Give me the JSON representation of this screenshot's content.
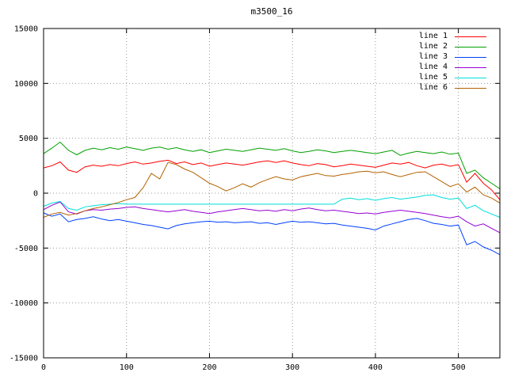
{
  "title": "m3500_16",
  "background": "#ffffff",
  "axis": {
    "border_color": "#000000",
    "grid_color": "#9b9b9b",
    "tick_color": "#000000",
    "grid_on": true
  },
  "chart_data": {
    "type": "line",
    "title": "m3500_16",
    "xlabel": "",
    "ylabel": "",
    "xlim": [
      0,
      550
    ],
    "ylim": [
      -15000,
      15000
    ],
    "xticks": [
      0,
      100,
      200,
      300,
      400,
      500
    ],
    "yticks": [
      -15000,
      -10000,
      -5000,
      0,
      5000,
      10000,
      15000
    ],
    "grid": true,
    "legend_position": "top-right-inside",
    "x_start": 0,
    "x_step": 10,
    "series": [
      {
        "name": "line 1",
        "color": "#ff0000",
        "values": [
          2300,
          2500,
          2850,
          2100,
          1900,
          2400,
          2550,
          2450,
          2600,
          2500,
          2700,
          2850,
          2650,
          2750,
          2900,
          3000,
          2700,
          2850,
          2600,
          2750,
          2450,
          2600,
          2750,
          2650,
          2550,
          2700,
          2850,
          2950,
          2800,
          2950,
          2750,
          2600,
          2500,
          2700,
          2600,
          2400,
          2500,
          2650,
          2550,
          2450,
          2350,
          2550,
          2750,
          2650,
          2800,
          2500,
          2300,
          2550,
          2650,
          2450,
          2600,
          1000,
          1800,
          900,
          300,
          -600
        ]
      },
      {
        "name": "line 2",
        "color": "#00a000",
        "values": [
          3600,
          4100,
          4650,
          3900,
          3500,
          3900,
          4100,
          3950,
          4150,
          4000,
          4200,
          4050,
          3900,
          4100,
          4200,
          4000,
          4150,
          3950,
          3800,
          3950,
          3700,
          3850,
          4000,
          3900,
          3800,
          3950,
          4100,
          4000,
          3900,
          4050,
          3850,
          3700,
          3800,
          3950,
          3850,
          3700,
          3800,
          3900,
          3800,
          3700,
          3600,
          3750,
          3900,
          3450,
          3650,
          3800,
          3700,
          3600,
          3750,
          3550,
          3650,
          1800,
          2100,
          1400,
          900,
          400
        ]
      },
      {
        "name": "line 3",
        "color": "#0040ff",
        "values": [
          -1800,
          -2100,
          -1900,
          -2600,
          -2400,
          -2300,
          -2150,
          -2350,
          -2500,
          -2400,
          -2550,
          -2700,
          -2850,
          -2950,
          -3100,
          -3250,
          -2950,
          -2800,
          -2700,
          -2600,
          -2550,
          -2650,
          -2600,
          -2700,
          -2650,
          -2600,
          -2750,
          -2700,
          -2850,
          -2700,
          -2550,
          -2650,
          -2600,
          -2700,
          -2800,
          -2750,
          -2900,
          -3000,
          -3100,
          -3200,
          -3350,
          -3000,
          -2800,
          -2600,
          -2400,
          -2300,
          -2500,
          -2750,
          -2850,
          -3000,
          -2900,
          -4700,
          -4400,
          -4900,
          -5200,
          -5600
        ]
      },
      {
        "name": "line 4",
        "color": "#9400d3",
        "values": [
          -1500,
          -1100,
          -800,
          -1700,
          -1900,
          -1600,
          -1500,
          -1550,
          -1450,
          -1400,
          -1300,
          -1250,
          -1400,
          -1500,
          -1600,
          -1700,
          -1600,
          -1500,
          -1650,
          -1750,
          -1850,
          -1700,
          -1600,
          -1500,
          -1400,
          -1500,
          -1600,
          -1550,
          -1650,
          -1500,
          -1600,
          -1450,
          -1350,
          -1500,
          -1600,
          -1550,
          -1650,
          -1750,
          -1850,
          -1800,
          -1900,
          -1750,
          -1650,
          -1550,
          -1650,
          -1750,
          -1850,
          -2000,
          -2150,
          -2250,
          -2100,
          -2600,
          -3000,
          -2800,
          -3200,
          -3600
        ]
      },
      {
        "name": "line 5",
        "color": "#00dddd",
        "values": [
          -1200,
          -900,
          -750,
          -1400,
          -1550,
          -1250,
          -1150,
          -1050,
          -1000,
          -950,
          -1000,
          -1000,
          -1000,
          -1000,
          -1000,
          -1000,
          -1000,
          -1000,
          -1000,
          -1000,
          -1000,
          -1000,
          -1000,
          -1000,
          -1000,
          -1000,
          -1000,
          -1000,
          -1000,
          -1000,
          -1000,
          -1000,
          -1000,
          -1000,
          -1000,
          -1000,
          -550,
          -450,
          -600,
          -500,
          -650,
          -500,
          -400,
          -550,
          -450,
          -350,
          -200,
          -150,
          -400,
          -550,
          -450,
          -1400,
          -1100,
          -1600,
          -1900,
          -2200
        ]
      },
      {
        "name": "line 6",
        "color": "#b36200",
        "values": [
          -2200,
          -1900,
          -1750,
          -2000,
          -1850,
          -1600,
          -1400,
          -1250,
          -1050,
          -850,
          -600,
          -400,
          500,
          1800,
          1300,
          2800,
          2600,
          2200,
          1900,
          1400,
          900,
          600,
          200,
          500,
          850,
          550,
          950,
          1250,
          1500,
          1300,
          1200,
          1500,
          1650,
          1800,
          1600,
          1550,
          1700,
          1800,
          1950,
          2000,
          1850,
          1950,
          1700,
          1500,
          1700,
          1900,
          1950,
          1500,
          1050,
          600,
          850,
          100,
          550,
          -150,
          -450,
          -900
        ]
      }
    ]
  }
}
